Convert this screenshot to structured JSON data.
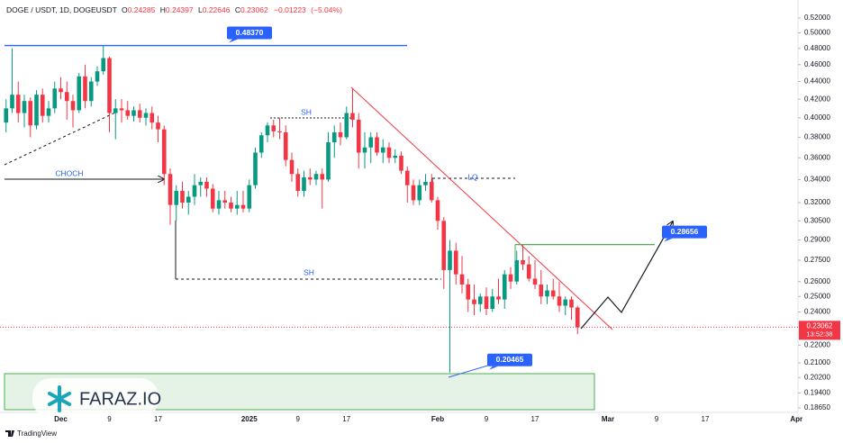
{
  "chart_data": {
    "type": "candlestick",
    "title": "DOGE / USDT, 1D, DOGEUSDT",
    "ohlc_labels": [
      "O",
      "H",
      "L",
      "C"
    ],
    "change": {
      "value": -0.01223,
      "label": "−0.01223"
    },
    "change_percent": {
      "value": -5.04,
      "label": "(−5.04%)"
    },
    "countdown": "13:52:38",
    "up_color": "#089981",
    "down_color": "#f23645",
    "log_scale": true,
    "grid": false,
    "categories": [
      null,
      null,
      null,
      null,
      null,
      null,
      null,
      null,
      null,
      "Dec",
      null,
      null,
      null,
      null,
      null,
      null,
      null,
      "9",
      null,
      null,
      null,
      null,
      null,
      null,
      null,
      "17",
      null,
      null,
      null,
      null,
      null,
      null,
      null,
      null,
      null,
      null,
      null,
      null,
      null,
      null,
      "2025",
      null,
      null,
      null,
      null,
      null,
      null,
      null,
      "9",
      null,
      null,
      null,
      null,
      null,
      null,
      null,
      "17",
      null,
      null,
      null,
      null,
      null,
      null,
      null,
      null,
      null,
      null,
      null,
      null,
      null,
      null,
      "Feb",
      null,
      null,
      null,
      null,
      null,
      null,
      null,
      "9",
      null,
      null,
      null,
      null,
      null,
      null,
      null,
      "17",
      null,
      null,
      null,
      null,
      null,
      null,
      null,
      null,
      null,
      null,
      null,
      "Mar",
      null,
      null,
      null,
      null,
      null,
      null,
      null,
      "9",
      null,
      null,
      null,
      null,
      null,
      null,
      null,
      "17",
      null,
      null,
      null,
      null,
      null,
      null,
      null,
      null,
      null,
      null,
      null,
      null,
      null,
      null,
      "Apr"
    ],
    "open": [
      0.395,
      0.41,
      0.425,
      0.405,
      0.418,
      0.392,
      0.425,
      0.402,
      0.41,
      0.432,
      0.428,
      0.418,
      0.408,
      0.446,
      0.418,
      0.44,
      0.452,
      0.468,
      0.405,
      0.41,
      0.408,
      0.402,
      0.408,
      0.4,
      0.405,
      0.395,
      0.388,
      0.345,
      0.318,
      0.33,
      0.32,
      0.325,
      0.335,
      0.338,
      0.332,
      0.315,
      0.322,
      0.32,
      0.315,
      0.318,
      0.315,
      0.335,
      0.365,
      0.382,
      0.392,
      0.386,
      0.385,
      0.358,
      0.345,
      0.33,
      0.342,
      0.34,
      0.345,
      0.34,
      0.375,
      0.385,
      0.38,
      0.405,
      0.398,
      0.365,
      0.37,
      0.38,
      0.365,
      0.37,
      0.36,
      0.362,
      0.348,
      0.335,
      0.322,
      0.335,
      0.338,
      0.322,
      0.305,
      0.268,
      0.282,
      0.265,
      0.258,
      0.248,
      0.245,
      0.25,
      0.242,
      0.25,
      0.248,
      0.265,
      0.26,
      0.275,
      0.272,
      0.262,
      0.258,
      0.25,
      0.254,
      0.25,
      0.244,
      0.248,
      0.24285,
      null,
      null,
      null,
      null,
      null,
      null,
      null,
      null,
      null,
      null,
      null,
      null,
      null,
      null,
      null,
      null,
      null,
      null,
      null,
      null,
      null,
      null,
      null,
      null,
      null,
      null,
      null,
      null,
      null,
      null,
      null,
      null,
      null,
      null,
      null,
      null
    ],
    "high": [
      0.42,
      0.48,
      0.44,
      0.425,
      0.422,
      0.43,
      0.432,
      0.418,
      0.44,
      0.445,
      0.44,
      0.425,
      0.45,
      0.46,
      0.445,
      0.458,
      0.4837,
      0.47,
      0.42,
      0.42,
      0.418,
      0.412,
      0.415,
      0.41,
      0.412,
      0.402,
      0.392,
      0.35,
      0.335,
      0.338,
      0.33,
      0.345,
      0.342,
      0.342,
      0.336,
      0.33,
      0.33,
      0.325,
      0.33,
      0.33,
      0.34,
      0.37,
      0.385,
      0.395,
      0.398,
      0.4,
      0.392,
      0.365,
      0.35,
      0.348,
      0.35,
      0.348,
      0.35,
      0.385,
      0.392,
      0.395,
      0.412,
      0.432,
      0.405,
      0.385,
      0.385,
      0.385,
      0.378,
      0.375,
      0.368,
      0.366,
      0.352,
      0.34,
      0.34,
      0.345,
      0.345,
      0.325,
      0.308,
      0.29,
      0.288,
      0.278,
      0.262,
      0.258,
      0.252,
      0.256,
      0.255,
      0.262,
      0.268,
      0.27,
      0.282,
      0.28656,
      0.278,
      0.275,
      0.268,
      0.258,
      0.262,
      0.26,
      0.25,
      0.25,
      0.24397,
      null,
      null,
      null,
      null,
      null,
      null,
      null,
      null,
      null,
      null,
      null,
      null,
      null,
      null,
      null,
      null,
      null,
      null,
      null,
      null,
      null,
      null,
      null,
      null,
      null,
      null,
      null,
      null,
      null,
      null,
      null,
      null,
      null,
      null,
      null,
      null
    ],
    "low": [
      0.385,
      0.405,
      0.395,
      0.39,
      0.38,
      0.388,
      0.395,
      0.395,
      0.405,
      0.42,
      0.398,
      0.39,
      0.405,
      0.41,
      0.412,
      0.435,
      0.448,
      0.385,
      0.378,
      0.395,
      0.398,
      0.396,
      0.395,
      0.392,
      0.388,
      0.375,
      0.335,
      0.302,
      0.305,
      0.315,
      0.31,
      0.318,
      0.325,
      0.325,
      0.312,
      0.31,
      0.315,
      0.312,
      0.31,
      0.312,
      0.312,
      0.332,
      0.36,
      0.375,
      0.38,
      0.378,
      0.352,
      0.338,
      0.325,
      0.325,
      0.335,
      0.335,
      0.315,
      0.338,
      0.36,
      0.372,
      0.378,
      0.39,
      0.35,
      0.35,
      0.355,
      0.362,
      0.355,
      0.355,
      0.355,
      0.345,
      0.32,
      0.318,
      0.318,
      0.33,
      0.32,
      0.298,
      0.255,
      0.20465,
      0.258,
      0.252,
      0.24,
      0.238,
      0.24,
      0.238,
      0.24,
      0.245,
      0.242,
      0.255,
      0.258,
      0.268,
      0.26,
      0.255,
      0.245,
      0.245,
      0.248,
      0.24,
      0.238,
      0.235,
      0.22646,
      null,
      null,
      null,
      null,
      null,
      null,
      null,
      null,
      null,
      null,
      null,
      null,
      null,
      null,
      null,
      null,
      null,
      null,
      null,
      null,
      null,
      null,
      null,
      null,
      null,
      null,
      null,
      null,
      null,
      null,
      null,
      null,
      null,
      null,
      null,
      null
    ],
    "close": [
      0.41,
      0.425,
      0.405,
      0.418,
      0.392,
      0.425,
      0.402,
      0.41,
      0.432,
      0.428,
      0.418,
      0.408,
      0.446,
      0.418,
      0.44,
      0.452,
      0.468,
      0.405,
      0.41,
      0.408,
      0.402,
      0.408,
      0.4,
      0.405,
      0.395,
      0.388,
      0.345,
      0.318,
      0.33,
      0.32,
      0.325,
      0.335,
      0.338,
      0.332,
      0.315,
      0.322,
      0.32,
      0.315,
      0.318,
      0.315,
      0.335,
      0.365,
      0.382,
      0.392,
      0.386,
      0.385,
      0.358,
      0.345,
      0.33,
      0.342,
      0.34,
      0.345,
      0.34,
      0.375,
      0.385,
      0.38,
      0.405,
      0.398,
      0.365,
      0.37,
      0.38,
      0.365,
      0.37,
      0.36,
      0.362,
      0.348,
      0.335,
      0.322,
      0.335,
      0.338,
      0.322,
      0.305,
      0.268,
      0.282,
      0.265,
      0.258,
      0.248,
      0.245,
      0.25,
      0.242,
      0.25,
      0.248,
      0.265,
      0.26,
      0.275,
      0.272,
      0.262,
      0.258,
      0.25,
      0.254,
      0.25,
      0.244,
      0.248,
      0.24285,
      0.23062,
      null,
      null,
      null,
      null,
      null,
      null,
      null,
      null,
      null,
      null,
      null,
      null,
      null,
      null,
      null,
      null,
      null,
      null,
      null,
      null,
      null,
      null,
      null,
      null,
      null,
      null,
      null,
      null,
      null,
      null,
      null,
      null,
      null,
      null,
      null,
      null
    ],
    "ylim": [
      0.1865,
      0.52
    ],
    "yticks": [
      {
        "value": 0.52,
        "label": "0.52000"
      },
      {
        "value": 0.5,
        "label": "0.50000"
      },
      {
        "value": 0.48,
        "label": "0.48000"
      },
      {
        "value": 0.46,
        "label": "0.46000"
      },
      {
        "value": 0.44,
        "label": "0.44000"
      },
      {
        "value": 0.42,
        "label": "0.42000"
      },
      {
        "value": 0.4,
        "label": "0.40000"
      },
      {
        "value": 0.38,
        "label": "0.38000"
      },
      {
        "value": 0.36,
        "label": "0.36000"
      },
      {
        "value": 0.34,
        "label": "0.34000"
      },
      {
        "value": 0.32,
        "label": "0.32000"
      },
      {
        "value": 0.305,
        "label": "0.30500"
      },
      {
        "value": 0.29,
        "label": "0.29000"
      },
      {
        "value": 0.275,
        "label": "0.27500"
      },
      {
        "value": 0.26,
        "label": "0.26000"
      },
      {
        "value": 0.25,
        "label": "0.25000"
      },
      {
        "value": 0.24,
        "label": "0.24000"
      },
      {
        "value": 0.22,
        "label": "0.22000"
      },
      {
        "value": 0.21,
        "label": "0.21000"
      },
      {
        "value": 0.202,
        "label": "0.20200"
      },
      {
        "value": 0.194,
        "label": "0.19400"
      },
      {
        "value": 0.1865,
        "label": "0.18650"
      }
    ],
    "levels": [
      {
        "value": 0.4837,
        "label": "0.48370"
      },
      {
        "value": 0.28656,
        "label": "0.28656"
      },
      {
        "value": 0.20465,
        "label": "0.20465"
      }
    ],
    "annotations": [
      "SH",
      "SH",
      "CHOCH",
      "LQ"
    ]
  },
  "watermark": "FARAZ.IO",
  "footer": "TradingView"
}
